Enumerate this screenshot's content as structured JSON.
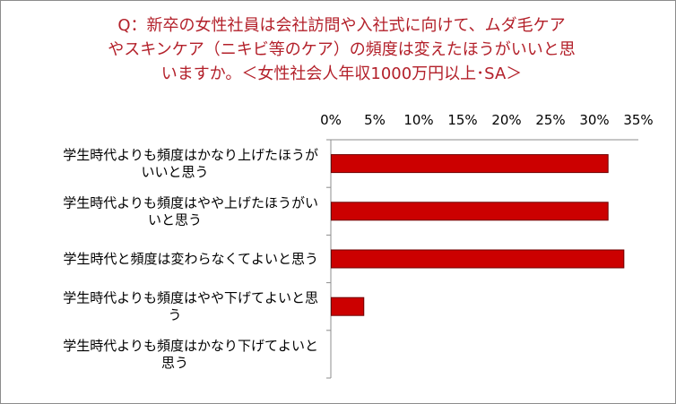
{
  "chart_data": {
    "type": "bar",
    "orientation": "horizontal",
    "title_lines": [
      "Q：新卒の女性社員は会社訪問や入社式に向けて、ムダ毛ケア",
      "やスキンケア（ニキビ等のケア）の頻度は変えたほうがいいと思",
      "いますか。＜女性社会人年収1000万円以上･SA＞"
    ],
    "categories": [
      [
        "学生時代よりも頻度はかなり上げたほうが",
        "いいと思う"
      ],
      [
        "学生時代よりも頻度はやや上げたほうがい",
        "いと思う"
      ],
      [
        "学生時代と頻度は変わらなくてよいと思う"
      ],
      [
        "学生時代よりも頻度はやや下げてよいと思",
        "う"
      ],
      [
        "学生時代よりも頻度はかなり下げてよいと",
        "思う"
      ]
    ],
    "values": [
      31.5,
      31.5,
      33.3,
      3.7,
      0
    ],
    "xlim": [
      0,
      35
    ],
    "xticks": [
      "0%",
      "5%",
      "10%",
      "15%",
      "20%",
      "25%",
      "30%",
      "35%"
    ],
    "tick_values": [
      0,
      5,
      10,
      15,
      20,
      25,
      30,
      35
    ],
    "axis_position": "top",
    "grid": false,
    "bar_color": "#cc0000",
    "bar_edge_color": "#6e0000"
  }
}
